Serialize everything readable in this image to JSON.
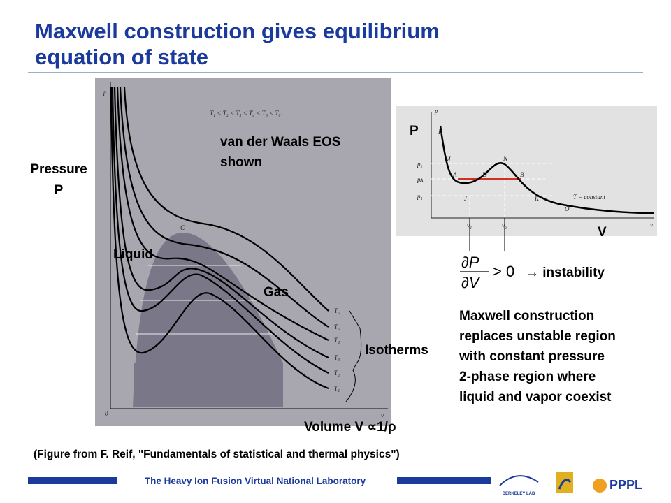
{
  "title": {
    "line1": "Maxwell construction gives equilibrium",
    "line2": "equation of state"
  },
  "left_figure": {
    "axis_p": "p",
    "axis_v": "v",
    "origin": "0",
    "order": "T₁ < T₂ < T₃ < T₄ < T₅ < T₆",
    "critical": "C",
    "isotherm_labels": [
      "T₆",
      "T₅",
      "T₄",
      "T₃",
      "T₂",
      "T₁"
    ]
  },
  "left_labels": {
    "pressure": "Pressure",
    "pressure_symbol": "P",
    "eos_line1": "van der Waals EOS",
    "eos_line2": "shown",
    "liquid": "Liquid",
    "gas": "Gas",
    "isotherms": "Isotherms",
    "volume": "Volume V ∝1/ρ"
  },
  "right_figure": {
    "axis_p": "p",
    "axis_v": "v",
    "points": [
      "R",
      "M",
      "A",
      "D",
      "N",
      "B",
      "J",
      "K",
      "O"
    ],
    "pressures": [
      "p₂",
      "pᴀ",
      "p₁"
    ],
    "volumes": [
      "v₁",
      "v₂"
    ],
    "constant": "T = constant",
    "big_p": "P",
    "big_v": "V"
  },
  "equation": {
    "numerator": "∂P",
    "denominator": "∂V",
    "relation": "> 0",
    "result": "→ instability"
  },
  "explanation": [
    "Maxwell construction",
    "replaces unstable region",
    "with constant pressure",
    "2-phase region where",
    "liquid and vapor coexist"
  ],
  "citation": "(Figure from F. Reif, \"Fundamentals of statistical and thermal physics\")",
  "footer": {
    "lab": "The Heavy Ion Fusion Virtual National Laboratory",
    "berkeley": "BERKELEY LAB",
    "pppl": "PPPL"
  }
}
